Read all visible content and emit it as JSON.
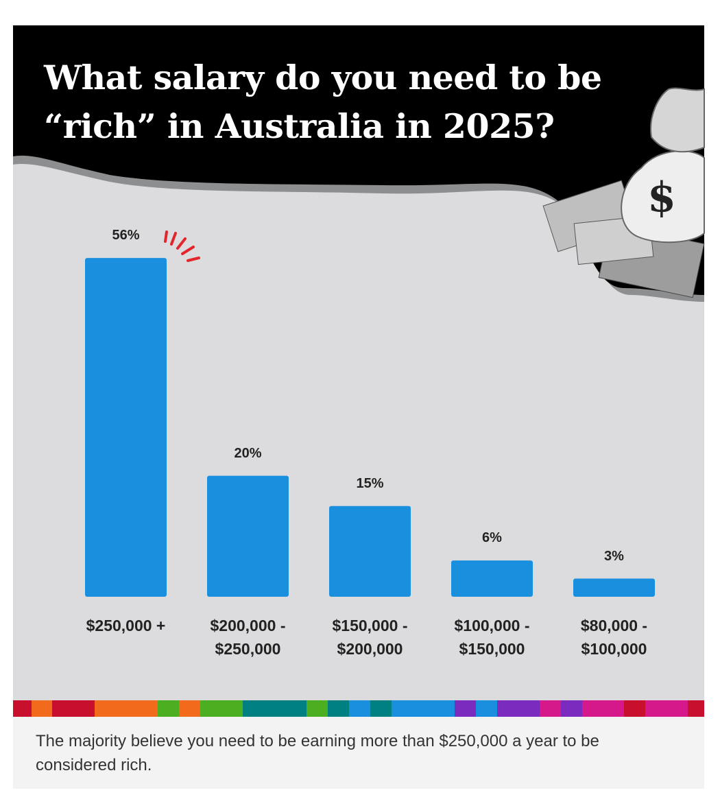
{
  "chart_data": {
    "type": "bar",
    "title": "What salary do you need to be\n“rich” in Australia in 2025?",
    "categories": [
      "$250,000 +",
      "$200,000 -\n$250,000",
      "$150,000 -\n$200,000",
      "$100,000 -\n$150,000",
      "$80,000 -\n$100,000"
    ],
    "values": [
      56,
      20,
      15,
      6,
      3
    ],
    "value_labels": [
      "56%",
      "20%",
      "15%",
      "6%",
      "3%"
    ],
    "color": "#1a8fdd"
  },
  "caption": "The majority believe you need to be earning more than $250,000 a year to be considered rich."
}
